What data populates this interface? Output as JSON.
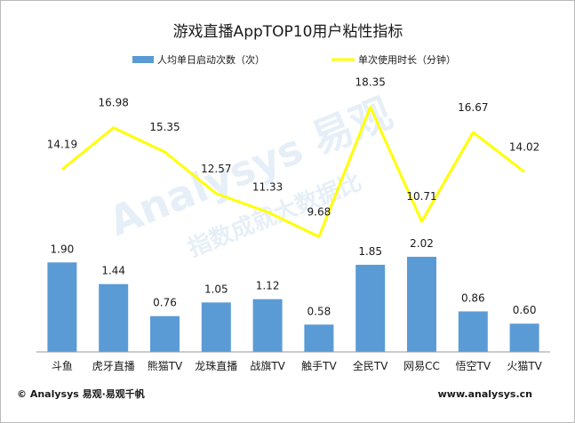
{
  "chart_data": {
    "type": "bar+line",
    "title": "游戏直播AppTOP10用户粘性指标",
    "categories": [
      "斗鱼",
      "虎牙直播",
      "熊猫TV",
      "龙珠直播",
      "战旗TV",
      "触手TV",
      "全民TV",
      "网易CC",
      "悟空TV",
      "火猫TV"
    ],
    "series": [
      {
        "name": "人均单日启动次数（次）",
        "type": "bar",
        "color": "#5b9bd5",
        "values": [
          1.9,
          1.44,
          0.76,
          1.05,
          1.12,
          0.58,
          1.85,
          2.02,
          0.86,
          0.6
        ],
        "labels": [
          "1.90",
          "1.44",
          "0.76",
          "1.05",
          "1.12",
          "0.58",
          "1.85",
          "2.02",
          "0.86",
          "0.60"
        ]
      },
      {
        "name": "单次使用时长（分钟）",
        "type": "line",
        "color": "#ffff00",
        "values": [
          14.19,
          16.98,
          15.35,
          12.57,
          11.33,
          9.68,
          18.35,
          10.71,
          16.67,
          14.02
        ],
        "labels": [
          "14.19",
          "16.98",
          "15.35",
          "12.57",
          "11.33",
          "9.68",
          "18.35",
          "10.71",
          "16.67",
          "14.02"
        ]
      }
    ],
    "legend_position": "top",
    "grid": false
  },
  "watermark": {
    "brand_text": "Analysys 易观",
    "slogan_text": "指数成就大数据比"
  },
  "footer": {
    "left_text": "© Analysys 易观·易观千帆",
    "right_text": "www.analysys.cn"
  }
}
